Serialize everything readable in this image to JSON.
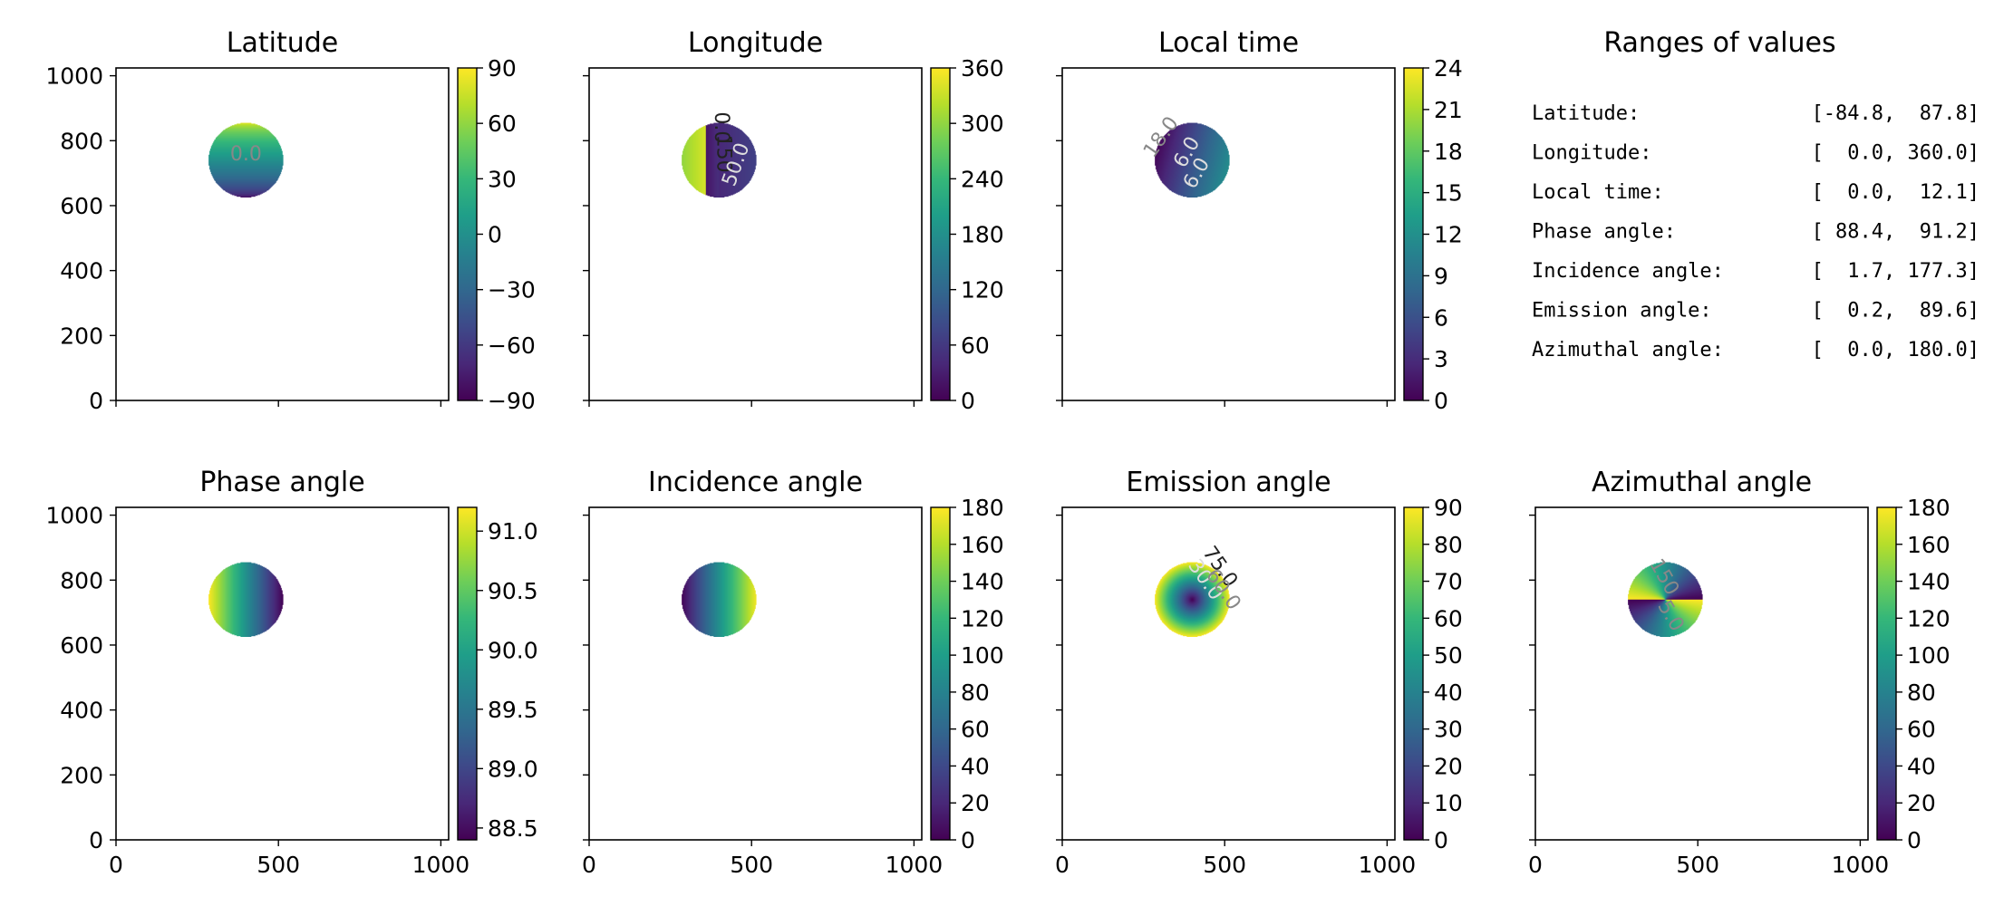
{
  "colormap": "viridis",
  "colors": {
    "viridis_stops": [
      "#440154",
      "#482878",
      "#3e4989",
      "#31688e",
      "#26828e",
      "#1f9e89",
      "#35b779",
      "#6ece58",
      "#b5de2b",
      "#fde725"
    ],
    "contour_dark": "#222222",
    "contour_light": "#dddddd",
    "contour_mid": "#888888"
  },
  "chart_data": [
    {
      "type": "heatmap",
      "title": "Latitude",
      "xlim": [
        0,
        1024
      ],
      "ylim": [
        0,
        1024
      ],
      "xticks": [
        0,
        500,
        1000
      ],
      "yticks": [
        0,
        200,
        400,
        600,
        800,
        1000
      ],
      "show_x_ticklabels": false,
      "show_y_ticklabels": true,
      "disk_center": [
        400,
        740
      ],
      "disk_radius": 115,
      "field": "latitude",
      "value_range": [
        -84.8,
        87.8
      ],
      "colorbar": {
        "min": -90,
        "max": 90,
        "ticks": [
          -90,
          -60,
          -30,
          0,
          30,
          60,
          90
        ],
        "tick_labels": [
          "−90",
          "−60",
          "−30",
          "0",
          "30",
          "60",
          "90"
        ]
      },
      "contour_labels": [
        {
          "text": "0.0",
          "x": 400,
          "y": 740,
          "rotation": 0,
          "tone": "mid"
        }
      ]
    },
    {
      "type": "heatmap",
      "title": "Longitude",
      "xlim": [
        0,
        1024
      ],
      "ylim": [
        0,
        1024
      ],
      "xticks": [
        0,
        500,
        1000
      ],
      "yticks": [
        0,
        200,
        400,
        600,
        800,
        1000
      ],
      "show_x_ticklabels": false,
      "show_y_ticklabels": false,
      "disk_center": [
        400,
        740
      ],
      "disk_radius": 115,
      "field": "longitude",
      "value_range": [
        0.0,
        360.0
      ],
      "colorbar": {
        "min": 0,
        "max": 360,
        "ticks": [
          0,
          60,
          120,
          180,
          240,
          300,
          360
        ],
        "tick_labels": [
          "0",
          "60",
          "120",
          "180",
          "240",
          "300",
          "360"
        ]
      },
      "contour_labels": [
        {
          "text": "0.0",
          "x": 388,
          "y": 840,
          "rotation": 90,
          "tone": "dark"
        },
        {
          "text": "150",
          "x": 395,
          "y": 760,
          "rotation": 90,
          "tone": "dark"
        },
        {
          "text": "50.0",
          "x": 470,
          "y": 720,
          "rotation": -70,
          "tone": "light"
        }
      ]
    },
    {
      "type": "heatmap",
      "title": "Local time",
      "xlim": [
        0,
        1024
      ],
      "ylim": [
        0,
        1024
      ],
      "xticks": [
        0,
        500,
        1000
      ],
      "yticks": [
        0,
        200,
        400,
        600,
        800,
        1000
      ],
      "show_x_ticklabels": false,
      "show_y_ticklabels": false,
      "disk_center": [
        400,
        740
      ],
      "disk_radius": 115,
      "field": "localtime",
      "value_range": [
        0.0,
        12.1
      ],
      "colorbar": {
        "min": 0,
        "max": 24,
        "ticks": [
          0,
          3,
          6,
          9,
          12,
          15,
          18,
          21,
          24
        ],
        "tick_labels": [
          "0",
          "3",
          "6",
          "9",
          "12",
          "15",
          "18",
          "21",
          "24"
        ]
      },
      "contour_labels": [
        {
          "text": "18.0",
          "x": 320,
          "y": 800,
          "rotation": -55,
          "tone": "mid"
        },
        {
          "text": "6.0",
          "x": 400,
          "y": 755,
          "rotation": -60,
          "tone": "light"
        },
        {
          "text": "6.0",
          "x": 430,
          "y": 690,
          "rotation": -60,
          "tone": "light"
        }
      ]
    },
    {
      "type": "table",
      "title": "Ranges of values",
      "rows": [
        {
          "label": "Latitude:",
          "range": "[-84.8,  87.8]"
        },
        {
          "label": "Longitude:",
          "range": "[  0.0, 360.0]"
        },
        {
          "label": "Local time:",
          "range": "[  0.0,  12.1]"
        },
        {
          "label": "Phase angle:",
          "range": "[ 88.4,  91.2]"
        },
        {
          "label": "Incidence angle:",
          "range": "[  1.7, 177.3]"
        },
        {
          "label": "Emission angle:",
          "range": "[  0.2,  89.6]"
        },
        {
          "label": "Azimuthal angle:",
          "range": "[  0.0, 180.0]"
        }
      ]
    },
    {
      "type": "heatmap",
      "title": "Phase angle",
      "xlim": [
        0,
        1024
      ],
      "ylim": [
        0,
        1024
      ],
      "xticks": [
        0,
        500,
        1000
      ],
      "yticks": [
        0,
        200,
        400,
        600,
        800,
        1000
      ],
      "show_x_ticklabels": true,
      "show_y_ticklabels": true,
      "disk_center": [
        400,
        740
      ],
      "disk_radius": 115,
      "field": "phase",
      "value_range": [
        88.4,
        91.2
      ],
      "colorbar": {
        "min": 88.4,
        "max": 91.2,
        "ticks": [
          88.5,
          89.0,
          89.5,
          90.0,
          90.5,
          91.0
        ],
        "tick_labels": [
          "88.5",
          "89.0",
          "89.5",
          "90.0",
          "90.5",
          "91.0"
        ]
      },
      "contour_labels": []
    },
    {
      "type": "heatmap",
      "title": "Incidence angle",
      "xlim": [
        0,
        1024
      ],
      "ylim": [
        0,
        1024
      ],
      "xticks": [
        0,
        500,
        1000
      ],
      "yticks": [
        0,
        200,
        400,
        600,
        800,
        1000
      ],
      "show_x_ticklabels": true,
      "show_y_ticklabels": false,
      "disk_center": [
        400,
        740
      ],
      "disk_radius": 115,
      "field": "incidence",
      "value_range": [
        1.7,
        177.3
      ],
      "colorbar": {
        "min": 0,
        "max": 180,
        "ticks": [
          0,
          20,
          40,
          60,
          80,
          100,
          120,
          140,
          160,
          180
        ],
        "tick_labels": [
          "0",
          "20",
          "40",
          "60",
          "80",
          "100",
          "120",
          "140",
          "160",
          "180"
        ]
      },
      "contour_labels": []
    },
    {
      "type": "heatmap",
      "title": "Emission angle",
      "xlim": [
        0,
        1024
      ],
      "ylim": [
        0,
        1024
      ],
      "xticks": [
        0,
        500,
        1000
      ],
      "yticks": [
        0,
        200,
        400,
        600,
        800,
        1000
      ],
      "show_x_ticklabels": true,
      "show_y_ticklabels": false,
      "disk_center": [
        400,
        740
      ],
      "disk_radius": 115,
      "field": "emission",
      "value_range": [
        0.2,
        89.6
      ],
      "colorbar": {
        "min": 0,
        "max": 90,
        "ticks": [
          0,
          10,
          20,
          30,
          40,
          50,
          60,
          70,
          80,
          90
        ],
        "tick_labels": [
          "0",
          "10",
          "20",
          "30",
          "40",
          "50",
          "60",
          "70",
          "80",
          "90"
        ]
      },
      "contour_labels": [
        {
          "text": "75.0",
          "x": 470,
          "y": 830,
          "rotation": 55,
          "tone": "dark"
        },
        {
          "text": "30.0",
          "x": 425,
          "y": 790,
          "rotation": 55,
          "tone": "light"
        },
        {
          "text": "60.0",
          "x": 480,
          "y": 760,
          "rotation": 55,
          "tone": "mid"
        }
      ]
    },
    {
      "type": "heatmap",
      "title": "Azimuthal angle",
      "xlim": [
        0,
        1024
      ],
      "ylim": [
        0,
        1024
      ],
      "xticks": [
        0,
        500,
        1000
      ],
      "yticks": [
        0,
        200,
        400,
        600,
        800,
        1000
      ],
      "show_x_ticklabels": true,
      "show_y_ticklabels": false,
      "disk_center": [
        400,
        740
      ],
      "disk_radius": 115,
      "field": "azimuth",
      "value_range": [
        0.0,
        180.0
      ],
      "colorbar": {
        "min": 0,
        "max": 180,
        "ticks": [
          0,
          20,
          40,
          60,
          80,
          100,
          120,
          140,
          160,
          180
        ],
        "tick_labels": [
          "0",
          "20",
          "40",
          "60",
          "80",
          "100",
          "120",
          "140",
          "160",
          "180"
        ]
      },
      "contour_labels": [
        {
          "text": "150",
          "x": 380,
          "y": 800,
          "rotation": 60,
          "tone": "mid"
        },
        {
          "text": "5.0",
          "x": 400,
          "y": 680,
          "rotation": 60,
          "tone": "mid"
        }
      ]
    }
  ]
}
